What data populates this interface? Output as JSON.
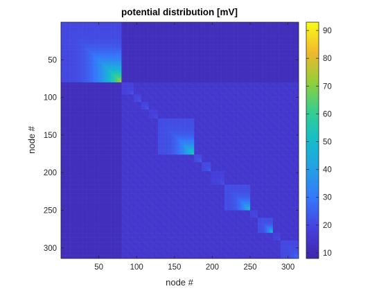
{
  "chart_data": {
    "type": "heatmap",
    "title": "potential distribution [mV]",
    "xlabel": "node #",
    "ylabel": "node #",
    "xlim": [
      0,
      314
    ],
    "ylim": [
      314,
      0
    ],
    "x_ticks": [
      "50",
      "100",
      "150",
      "200",
      "250",
      "300"
    ],
    "y_ticks": [
      "50",
      "100",
      "150",
      "200",
      "250",
      "300"
    ],
    "colormap": "parula",
    "color_range": [
      8,
      93
    ],
    "colorbar_ticks": [
      "10",
      "20",
      "30",
      "40",
      "50",
      "60",
      "70",
      "80",
      "90"
    ],
    "base_value": 16,
    "blocks": [
      {
        "from": 1,
        "to": 80,
        "peak": 76,
        "low": 20
      },
      {
        "from": 81,
        "to": 95,
        "peak": 22,
        "low": 18
      },
      {
        "from": 96,
        "to": 105,
        "peak": 23,
        "low": 19
      },
      {
        "from": 106,
        "to": 115,
        "peak": 24,
        "low": 19
      },
      {
        "from": 116,
        "to": 128,
        "peak": 22,
        "low": 18
      },
      {
        "from": 129,
        "to": 175,
        "peak": 57,
        "low": 21
      },
      {
        "from": 176,
        "to": 185,
        "peak": 25,
        "low": 20
      },
      {
        "from": 186,
        "to": 198,
        "peak": 27,
        "low": 20
      },
      {
        "from": 199,
        "to": 215,
        "peak": 22,
        "low": 18
      },
      {
        "from": 216,
        "to": 250,
        "peak": 52,
        "low": 21
      },
      {
        "from": 251,
        "to": 260,
        "peak": 22,
        "low": 19
      },
      {
        "from": 261,
        "to": 280,
        "peak": 55,
        "low": 21
      },
      {
        "from": 281,
        "to": 290,
        "peak": 22,
        "low": 18
      },
      {
        "from": 291,
        "to": 314,
        "peak": 28,
        "low": 20
      }
    ],
    "dark_region": {
      "from": 1,
      "to": 80,
      "value": 12
    }
  }
}
